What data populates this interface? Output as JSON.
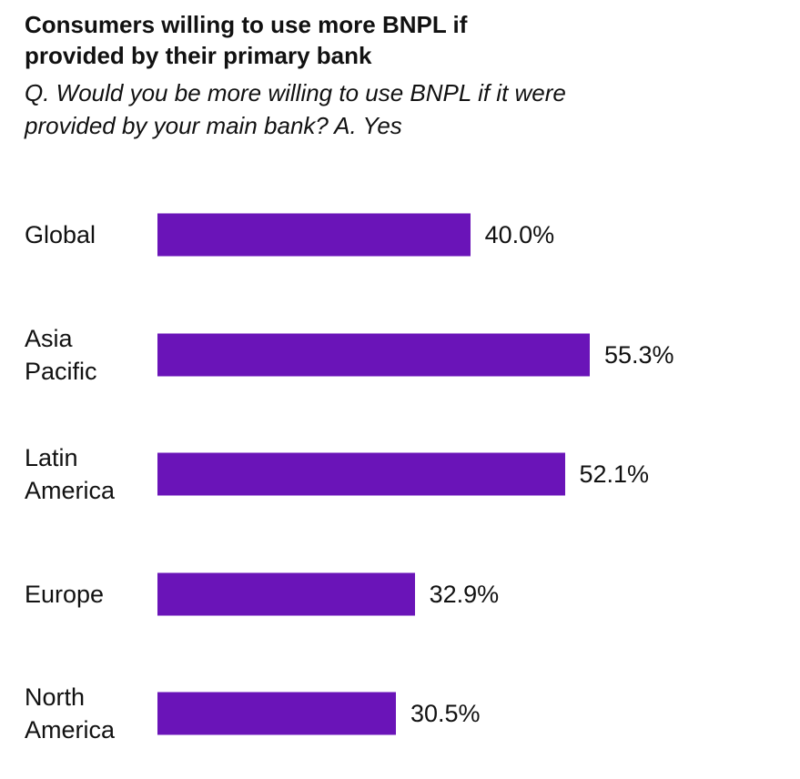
{
  "chart_data": {
    "type": "bar",
    "orientation": "horizontal",
    "title": "Consumers willing to use more BNPL if provided by their primary bank",
    "subtitle": "Q. Would you be more willing to use BNPL if it were provided by your main bank? A. Yes",
    "categories": [
      "Global",
      "Asia Pacific",
      "Latin America",
      "Europe",
      "North America"
    ],
    "values": [
      40.0,
      55.3,
      52.1,
      32.9,
      30.5
    ],
    "value_labels": [
      "40.0%",
      "55.3%",
      "52.1%",
      "32.9%",
      "30.5%"
    ],
    "color": "#6a14b8"
  }
}
